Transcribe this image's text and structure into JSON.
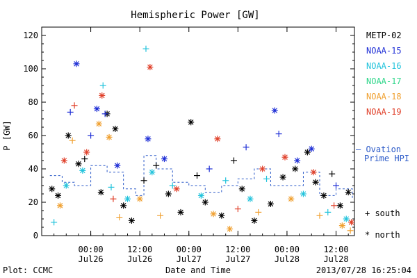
{
  "chart_data": {
    "type": "scatter",
    "title": "Hemispheric Power [GW]",
    "ylabel": "P [GW]",
    "xlabel": "Date and Time",
    "ylim": [
      0,
      125
    ],
    "yticks": [
      0,
      20,
      40,
      60,
      80,
      100,
      120
    ],
    "xlim_hours_note": "",
    "xticks": [
      {
        "time": "00:00",
        "date": "Jul26"
      },
      {
        "time": "12:00",
        "date": "Jul26"
      },
      {
        "time": "00:00",
        "date": "Jul27"
      },
      {
        "time": "12:00",
        "date": "Jul27"
      },
      {
        "time": "00:00",
        "date": "Jul28"
      },
      {
        "time": "12:00",
        "date": "Jul28"
      }
    ],
    "legend": {
      "placement": "right",
      "satellites": [
        {
          "name": "METP-02",
          "color": "#000000"
        },
        {
          "name": "NOAA-15",
          "color": "#1f2fd6"
        },
        {
          "name": "NOAA-16",
          "color": "#22c3dc"
        },
        {
          "name": "NOAA-17",
          "color": "#2fd68a"
        },
        {
          "name": "NOAA-18",
          "color": "#f0a030"
        },
        {
          "name": "NOAA-19",
          "color": "#e0402a"
        }
      ],
      "ovation_label": "— Ovation",
      "ovation_label2": "Prime HPI",
      "ovation_color": "#2a59c8",
      "south_label": "+ south",
      "north_label": "* north"
    },
    "footer": {
      "left": "Plot: CCMC",
      "right": "2013/07/28 16:25:04"
    },
    "series": [
      {
        "name": "METP-02",
        "color": "#000000",
        "points": [
          {
            "t": "2013-07-25 14:30",
            "v": 28,
            "m": "*"
          },
          {
            "t": "2013-07-25 16:00",
            "v": 24,
            "m": "*"
          },
          {
            "t": "2013-07-25 18:30",
            "v": 60,
            "m": "*"
          },
          {
            "t": "2013-07-25 21:00",
            "v": 43,
            "m": "*"
          },
          {
            "t": "2013-07-25 22:30",
            "v": 46,
            "m": "+"
          },
          {
            "t": "2013-07-26 02:30",
            "v": 26,
            "m": "*"
          },
          {
            "t": "2013-07-26 04:00",
            "v": 73,
            "m": "*"
          },
          {
            "t": "2013-07-26 06:00",
            "v": 64,
            "m": "*"
          },
          {
            "t": "2013-07-26 08:00",
            "v": 18,
            "m": "*"
          },
          {
            "t": "2013-07-26 10:00",
            "v": 9,
            "m": "*"
          },
          {
            "t": "2013-07-26 13:00",
            "v": 33,
            "m": "+"
          },
          {
            "t": "2013-07-26 16:00",
            "v": 42,
            "m": "+"
          },
          {
            "t": "2013-07-26 19:00",
            "v": 25,
            "m": "*"
          },
          {
            "t": "2013-07-26 22:00",
            "v": 14,
            "m": "*"
          },
          {
            "t": "2013-07-27 00:30",
            "v": 68,
            "m": "*"
          },
          {
            "t": "2013-07-27 02:00",
            "v": 36,
            "m": "+"
          },
          {
            "t": "2013-07-27 04:00",
            "v": 20,
            "m": "*"
          },
          {
            "t": "2013-07-27 08:00",
            "v": 12,
            "m": "*"
          },
          {
            "t": "2013-07-27 11:00",
            "v": 45,
            "m": "+"
          },
          {
            "t": "2013-07-27 13:00",
            "v": 28,
            "m": "*"
          },
          {
            "t": "2013-07-27 16:00",
            "v": 9,
            "m": "*"
          },
          {
            "t": "2013-07-27 20:00",
            "v": 19,
            "m": "*"
          },
          {
            "t": "2013-07-27 23:00",
            "v": 35,
            "m": "*"
          },
          {
            "t": "2013-07-28 02:00",
            "v": 40,
            "m": "*"
          },
          {
            "t": "2013-07-28 05:00",
            "v": 50,
            "m": "*"
          },
          {
            "t": "2013-07-28 07:00",
            "v": 32,
            "m": "*"
          },
          {
            "t": "2013-07-28 09:00",
            "v": 24,
            "m": "*"
          },
          {
            "t": "2013-07-28 11:00",
            "v": 37,
            "m": "+"
          },
          {
            "t": "2013-07-28 13:00",
            "v": 18,
            "m": "*"
          },
          {
            "t": "2013-07-28 15:00",
            "v": 26,
            "m": "*"
          }
        ]
      },
      {
        "name": "NOAA-15",
        "color": "#1f2fd6",
        "points": [
          {
            "t": "2013-07-25 19:00",
            "v": 74,
            "m": "+"
          },
          {
            "t": "2013-07-25 20:30",
            "v": 103,
            "m": "*"
          },
          {
            "t": "2013-07-26 00:00",
            "v": 60,
            "m": "+"
          },
          {
            "t": "2013-07-26 01:30",
            "v": 76,
            "m": "*"
          },
          {
            "t": "2013-07-26 03:30",
            "v": 73,
            "m": "+"
          },
          {
            "t": "2013-07-26 06:30",
            "v": 42,
            "m": "*"
          },
          {
            "t": "2013-07-26 14:00",
            "v": 58,
            "m": "*"
          },
          {
            "t": "2013-07-26 18:00",
            "v": 46,
            "m": "*"
          },
          {
            "t": "2013-07-27 05:00",
            "v": 40,
            "m": "+"
          },
          {
            "t": "2013-07-27 14:00",
            "v": 53,
            "m": "+"
          },
          {
            "t": "2013-07-27 21:00",
            "v": 75,
            "m": "*"
          },
          {
            "t": "2013-07-27 22:00",
            "v": 61,
            "m": "+"
          },
          {
            "t": "2013-07-28 02:30",
            "v": 45,
            "m": "*"
          },
          {
            "t": "2013-07-28 06:00",
            "v": 52,
            "m": "*"
          },
          {
            "t": "2013-07-28 12:00",
            "v": 30,
            "m": "+"
          }
        ]
      },
      {
        "name": "NOAA-16",
        "color": "#22c3dc",
        "points": [
          {
            "t": "2013-07-25 15:00",
            "v": 8,
            "m": "+"
          },
          {
            "t": "2013-07-25 18:00",
            "v": 30,
            "m": "*"
          },
          {
            "t": "2013-07-25 22:00",
            "v": 39,
            "m": "*"
          },
          {
            "t": "2013-07-26 03:00",
            "v": 90,
            "m": "+"
          },
          {
            "t": "2013-07-26 05:00",
            "v": 29,
            "m": "+"
          },
          {
            "t": "2013-07-26 09:00",
            "v": 22,
            "m": "*"
          },
          {
            "t": "2013-07-26 13:30",
            "v": 112,
            "m": "+"
          },
          {
            "t": "2013-07-26 15:00",
            "v": 38,
            "m": "*"
          },
          {
            "t": "2013-07-26 20:00",
            "v": 30,
            "m": "+"
          },
          {
            "t": "2013-07-27 03:00",
            "v": 24,
            "m": "*"
          },
          {
            "t": "2013-07-27 09:00",
            "v": 33,
            "m": "+"
          },
          {
            "t": "2013-07-27 15:00",
            "v": 22,
            "m": "*"
          },
          {
            "t": "2013-07-27 19:00",
            "v": 34,
            "m": "+"
          },
          {
            "t": "2013-07-28 04:00",
            "v": 25,
            "m": "*"
          },
          {
            "t": "2013-07-28 10:00",
            "v": 14,
            "m": "+"
          },
          {
            "t": "2013-07-28 14:30",
            "v": 10,
            "m": "*"
          }
        ]
      },
      {
        "name": "NOAA-18",
        "color": "#f0a030",
        "points": [
          {
            "t": "2013-07-25 16:30",
            "v": 18,
            "m": "*"
          },
          {
            "t": "2013-07-25 19:30",
            "v": 57,
            "m": "+"
          },
          {
            "t": "2013-07-26 02:00",
            "v": 67,
            "m": "*"
          },
          {
            "t": "2013-07-26 04:30",
            "v": 59,
            "m": "*"
          },
          {
            "t": "2013-07-26 07:00",
            "v": 11,
            "m": "+"
          },
          {
            "t": "2013-07-26 12:00",
            "v": 22,
            "m": "*"
          },
          {
            "t": "2013-07-26 17:00",
            "v": 12,
            "m": "+"
          },
          {
            "t": "2013-07-27 06:00",
            "v": 13,
            "m": "*"
          },
          {
            "t": "2013-07-27 10:00",
            "v": 4,
            "m": "*"
          },
          {
            "t": "2013-07-27 17:00",
            "v": 14,
            "m": "+"
          },
          {
            "t": "2013-07-28 01:00",
            "v": 22,
            "m": "*"
          },
          {
            "t": "2013-07-28 08:00",
            "v": 12,
            "m": "+"
          },
          {
            "t": "2013-07-28 13:30",
            "v": 6,
            "m": "*"
          },
          {
            "t": "2013-07-28 15:30",
            "v": 3,
            "m": "+"
          }
        ]
      },
      {
        "name": "NOAA-19",
        "color": "#e0402a",
        "points": [
          {
            "t": "2013-07-25 17:30",
            "v": 45,
            "m": "*"
          },
          {
            "t": "2013-07-25 20:00",
            "v": 78,
            "m": "+"
          },
          {
            "t": "2013-07-25 23:00",
            "v": 50,
            "m": "*"
          },
          {
            "t": "2013-07-26 02:45",
            "v": 84,
            "m": "*"
          },
          {
            "t": "2013-07-26 05:30",
            "v": 22,
            "m": "+"
          },
          {
            "t": "2013-07-26 14:30",
            "v": 101,
            "m": "*"
          },
          {
            "t": "2013-07-26 21:00",
            "v": 28,
            "m": "*"
          },
          {
            "t": "2013-07-27 07:00",
            "v": 58,
            "m": "*"
          },
          {
            "t": "2013-07-27 12:00",
            "v": 16,
            "m": "+"
          },
          {
            "t": "2013-07-27 18:00",
            "v": 40,
            "m": "*"
          },
          {
            "t": "2013-07-27 23:30",
            "v": 47,
            "m": "*"
          },
          {
            "t": "2013-07-28 06:30",
            "v": 38,
            "m": "*"
          },
          {
            "t": "2013-07-28 11:30",
            "v": 18,
            "m": "+"
          },
          {
            "t": "2013-07-28 15:45",
            "v": 8,
            "m": "*"
          }
        ]
      }
    ],
    "ovation_hpi": [
      {
        "t": "2013-07-25 14:00",
        "v": 36
      },
      {
        "t": "2013-07-25 17:00",
        "v": 32
      },
      {
        "t": "2013-07-25 20:00",
        "v": 30
      },
      {
        "t": "2013-07-26 00:00",
        "v": 42
      },
      {
        "t": "2013-07-26 04:00",
        "v": 38
      },
      {
        "t": "2013-07-26 08:00",
        "v": 28
      },
      {
        "t": "2013-07-26 11:00",
        "v": 24
      },
      {
        "t": "2013-07-26 13:00",
        "v": 48
      },
      {
        "t": "2013-07-26 16:00",
        "v": 40
      },
      {
        "t": "2013-07-26 20:00",
        "v": 32
      },
      {
        "t": "2013-07-27 00:00",
        "v": 30
      },
      {
        "t": "2013-07-27 04:00",
        "v": 26
      },
      {
        "t": "2013-07-27 08:00",
        "v": 30
      },
      {
        "t": "2013-07-27 12:00",
        "v": 34
      },
      {
        "t": "2013-07-27 16:00",
        "v": 40
      },
      {
        "t": "2013-07-27 20:00",
        "v": 30
      },
      {
        "t": "2013-07-28 00:00",
        "v": 30
      },
      {
        "t": "2013-07-28 04:00",
        "v": 38
      },
      {
        "t": "2013-07-28 08:00",
        "v": 24
      },
      {
        "t": "2013-07-28 12:00",
        "v": 28
      },
      {
        "t": "2013-07-28 16:00",
        "v": 22
      }
    ]
  }
}
